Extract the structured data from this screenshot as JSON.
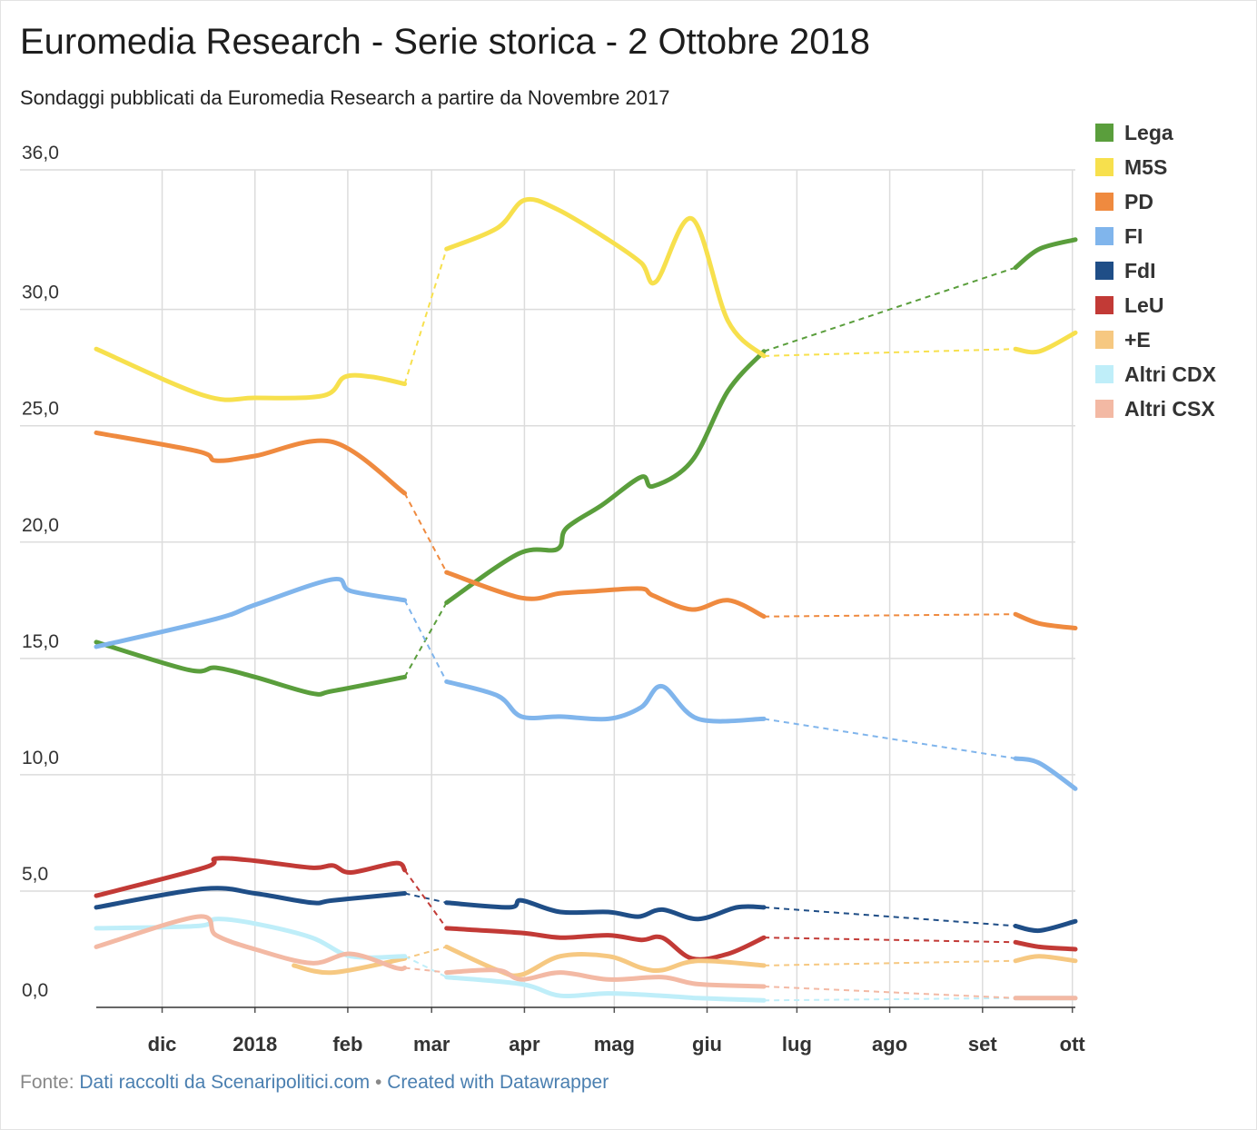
{
  "title": "Euromedia Research - Serie storica - 2 Ottobre 2018",
  "subtitle": "Sondaggi pubblicati da Euromedia Research a partire da Novembre 2017",
  "footer": {
    "prefix": "Fonte:",
    "source_link": "Dati raccolti da Scenaripolitici.com",
    "separator": "•",
    "credit_link": "Created with Datawrapper"
  },
  "chart_data": {
    "type": "line",
    "title": "Euromedia Research - Serie storica - 2 Ottobre 2018",
    "xlabel": "",
    "ylabel": "",
    "ylim": [
      0,
      36
    ],
    "y_ticks": [
      0,
      5,
      10,
      15,
      20,
      25,
      30,
      36
    ],
    "y_tick_labels": [
      "0,0",
      "5,0",
      "10,0",
      "15,0",
      "20,0",
      "25,0",
      "30,0",
      "36,0"
    ],
    "x_range": [
      "2017-11-09",
      "2018-10-02"
    ],
    "x_ticks": [
      {
        "date": "2017-12-01",
        "label": "dic"
      },
      {
        "date": "2018-01-01",
        "label": "2018"
      },
      {
        "date": "2018-02-01",
        "label": "feb"
      },
      {
        "date": "2018-03-01",
        "label": "mar"
      },
      {
        "date": "2018-04-01",
        "label": "apr"
      },
      {
        "date": "2018-05-01",
        "label": "mag"
      },
      {
        "date": "2018-06-01",
        "label": "giu"
      },
      {
        "date": "2018-07-01",
        "label": "lug"
      },
      {
        "date": "2018-08-01",
        "label": "ago"
      },
      {
        "date": "2018-09-01",
        "label": "set"
      },
      {
        "date": "2018-10-01",
        "label": "ott"
      }
    ],
    "grid": true,
    "legend": "right",
    "gaps": [
      [
        "2018-02-20",
        "2018-03-06"
      ],
      [
        "2018-06-20",
        "2018-09-12"
      ]
    ],
    "series": [
      {
        "name": "Lega",
        "color": "#5a9e3c",
        "points": [
          [
            "2017-11-09",
            15.7
          ],
          [
            "2017-12-10",
            14.5
          ],
          [
            "2017-12-19",
            14.6
          ],
          [
            "2018-01-01",
            14.2
          ],
          [
            "2018-01-20",
            13.5
          ],
          [
            "2018-01-27",
            13.6
          ],
          [
            "2018-02-20",
            14.2
          ],
          [
            "2018-03-06",
            17.4
          ],
          [
            "2018-03-30",
            19.5
          ],
          [
            "2018-04-12",
            19.7
          ],
          [
            "2018-04-15",
            20.6
          ],
          [
            "2018-04-27",
            21.6
          ],
          [
            "2018-05-10",
            22.8
          ],
          [
            "2018-05-14",
            22.4
          ],
          [
            "2018-05-27",
            23.5
          ],
          [
            "2018-06-08",
            26.5
          ],
          [
            "2018-06-20",
            28.2
          ],
          [
            "2018-09-12",
            31.8
          ],
          [
            "2018-09-20",
            32.6
          ],
          [
            "2018-10-02",
            33.0
          ]
        ]
      },
      {
        "name": "M5S",
        "color": "#f7e04d",
        "points": [
          [
            "2017-11-09",
            28.3
          ],
          [
            "2017-12-15",
            26.3
          ],
          [
            "2018-01-01",
            26.2
          ],
          [
            "2018-01-24",
            26.3
          ],
          [
            "2018-01-31",
            27.1
          ],
          [
            "2018-02-09",
            27.1
          ],
          [
            "2018-02-20",
            26.8
          ],
          [
            "2018-03-06",
            32.6
          ],
          [
            "2018-03-23",
            33.5
          ],
          [
            "2018-04-01",
            34.7
          ],
          [
            "2018-04-12",
            34.3
          ],
          [
            "2018-04-29",
            33.0
          ],
          [
            "2018-05-10",
            32.0
          ],
          [
            "2018-05-15",
            31.2
          ],
          [
            "2018-05-27",
            33.9
          ],
          [
            "2018-06-08",
            29.5
          ],
          [
            "2018-06-20",
            28.0
          ],
          [
            "2018-09-12",
            28.3
          ],
          [
            "2018-09-20",
            28.2
          ],
          [
            "2018-10-02",
            29.0
          ]
        ]
      },
      {
        "name": "PD",
        "color": "#ef8a3f",
        "points": [
          [
            "2017-11-09",
            24.7
          ],
          [
            "2017-12-13",
            23.9
          ],
          [
            "2017-12-19",
            23.5
          ],
          [
            "2018-01-01",
            23.7
          ],
          [
            "2018-01-27",
            24.3
          ],
          [
            "2018-02-20",
            22.1
          ],
          [
            "2018-03-06",
            18.7
          ],
          [
            "2018-03-31",
            17.6
          ],
          [
            "2018-04-13",
            17.8
          ],
          [
            "2018-04-25",
            17.9
          ],
          [
            "2018-05-10",
            18.0
          ],
          [
            "2018-05-14",
            17.7
          ],
          [
            "2018-05-27",
            17.1
          ],
          [
            "2018-06-08",
            17.5
          ],
          [
            "2018-06-20",
            16.8
          ],
          [
            "2018-09-12",
            16.9
          ],
          [
            "2018-09-20",
            16.5
          ],
          [
            "2018-10-02",
            16.3
          ]
        ]
      },
      {
        "name": "FI",
        "color": "#80b5ec",
        "points": [
          [
            "2017-11-09",
            15.5
          ],
          [
            "2017-12-19",
            16.7
          ],
          [
            "2018-01-01",
            17.3
          ],
          [
            "2018-01-27",
            18.4
          ],
          [
            "2018-02-02",
            17.9
          ],
          [
            "2018-02-20",
            17.5
          ],
          [
            "2018-03-06",
            14.0
          ],
          [
            "2018-03-23",
            13.4
          ],
          [
            "2018-03-31",
            12.5
          ],
          [
            "2018-04-13",
            12.5
          ],
          [
            "2018-04-29",
            12.4
          ],
          [
            "2018-05-10",
            12.9
          ],
          [
            "2018-05-17",
            13.8
          ],
          [
            "2018-05-29",
            12.4
          ],
          [
            "2018-06-20",
            12.4
          ],
          [
            "2018-09-12",
            10.7
          ],
          [
            "2018-09-20",
            10.5
          ],
          [
            "2018-10-02",
            9.4
          ]
        ]
      },
      {
        "name": "FdI",
        "color": "#1f4e87",
        "points": [
          [
            "2017-11-09",
            4.3
          ],
          [
            "2017-12-15",
            5.1
          ],
          [
            "2018-01-01",
            4.9
          ],
          [
            "2018-01-20",
            4.5
          ],
          [
            "2018-01-27",
            4.6
          ],
          [
            "2018-02-20",
            4.9
          ],
          [
            "2018-03-06",
            4.5
          ],
          [
            "2018-03-27",
            4.3
          ],
          [
            "2018-03-31",
            4.6
          ],
          [
            "2018-04-13",
            4.1
          ],
          [
            "2018-04-29",
            4.1
          ],
          [
            "2018-05-09",
            3.9
          ],
          [
            "2018-05-17",
            4.2
          ],
          [
            "2018-05-29",
            3.8
          ],
          [
            "2018-06-11",
            4.3
          ],
          [
            "2018-06-20",
            4.3
          ],
          [
            "2018-09-12",
            3.5
          ],
          [
            "2018-09-20",
            3.3
          ],
          [
            "2018-10-02",
            3.7
          ]
        ]
      },
      {
        "name": "LeU",
        "color": "#c23a36",
        "points": [
          [
            "2017-11-09",
            4.8
          ],
          [
            "2017-12-15",
            6.0
          ],
          [
            "2017-12-19",
            6.4
          ],
          [
            "2018-01-01",
            6.3
          ],
          [
            "2018-01-20",
            6.0
          ],
          [
            "2018-01-27",
            6.1
          ],
          [
            "2018-02-02",
            5.8
          ],
          [
            "2018-02-17",
            6.2
          ],
          [
            "2018-02-20",
            5.9
          ],
          [
            "2018-03-06",
            3.4
          ],
          [
            "2018-03-31",
            3.2
          ],
          [
            "2018-04-13",
            3.0
          ],
          [
            "2018-04-29",
            3.1
          ],
          [
            "2018-05-10",
            2.9
          ],
          [
            "2018-05-17",
            3.0
          ],
          [
            "2018-05-27",
            2.1
          ],
          [
            "2018-06-08",
            2.3
          ],
          [
            "2018-06-20",
            3.0
          ],
          [
            "2018-09-12",
            2.8
          ],
          [
            "2018-09-20",
            2.6
          ],
          [
            "2018-10-02",
            2.5
          ]
        ]
      },
      {
        "name": "+E",
        "color": "#f6c881",
        "points": [
          [
            "2018-01-14",
            1.8
          ],
          [
            "2018-01-27",
            1.5
          ],
          [
            "2018-02-20",
            2.1
          ],
          [
            "2018-03-06",
            2.6
          ],
          [
            "2018-03-23",
            1.6
          ],
          [
            "2018-03-31",
            1.4
          ],
          [
            "2018-04-13",
            2.2
          ],
          [
            "2018-04-29",
            2.2
          ],
          [
            "2018-05-10",
            1.7
          ],
          [
            "2018-05-17",
            1.6
          ],
          [
            "2018-05-29",
            2.0
          ],
          [
            "2018-06-20",
            1.8
          ],
          [
            "2018-09-12",
            2.0
          ],
          [
            "2018-09-20",
            2.2
          ],
          [
            "2018-10-02",
            2.0
          ]
        ]
      },
      {
        "name": "Altri CDX",
        "color": "#bfeef9",
        "points": [
          [
            "2017-11-09",
            3.4
          ],
          [
            "2017-12-13",
            3.5
          ],
          [
            "2017-12-19",
            3.8
          ],
          [
            "2018-01-01",
            3.6
          ],
          [
            "2018-01-20",
            3.0
          ],
          [
            "2018-02-02",
            2.2
          ],
          [
            "2018-02-20",
            2.2
          ],
          [
            "2018-03-06",
            1.3
          ],
          [
            "2018-03-31",
            1.0
          ],
          [
            "2018-04-13",
            0.5
          ],
          [
            "2018-04-29",
            0.6
          ],
          [
            "2018-05-17",
            0.5
          ],
          [
            "2018-05-29",
            0.4
          ],
          [
            "2018-06-20",
            0.3
          ],
          [
            "2018-09-12",
            0.4
          ],
          [
            "2018-09-20",
            0.4
          ],
          [
            "2018-10-02",
            0.4
          ]
        ]
      },
      {
        "name": "Altri CSX",
        "color": "#f3b9a4",
        "points": [
          [
            "2017-11-09",
            2.6
          ],
          [
            "2017-12-13",
            3.9
          ],
          [
            "2017-12-19",
            3.1
          ],
          [
            "2018-01-01",
            2.5
          ],
          [
            "2018-01-20",
            1.9
          ],
          [
            "2018-02-02",
            2.3
          ],
          [
            "2018-02-17",
            1.7
          ],
          [
            "2018-02-20",
            1.7
          ],
          [
            "2018-03-06",
            1.5
          ],
          [
            "2018-03-23",
            1.6
          ],
          [
            "2018-03-31",
            1.2
          ],
          [
            "2018-04-13",
            1.5
          ],
          [
            "2018-04-29",
            1.2
          ],
          [
            "2018-05-17",
            1.3
          ],
          [
            "2018-05-29",
            1.0
          ],
          [
            "2018-06-20",
            0.9
          ],
          [
            "2018-09-12",
            0.4
          ],
          [
            "2018-09-20",
            0.4
          ],
          [
            "2018-10-02",
            0.4
          ]
        ]
      }
    ]
  }
}
